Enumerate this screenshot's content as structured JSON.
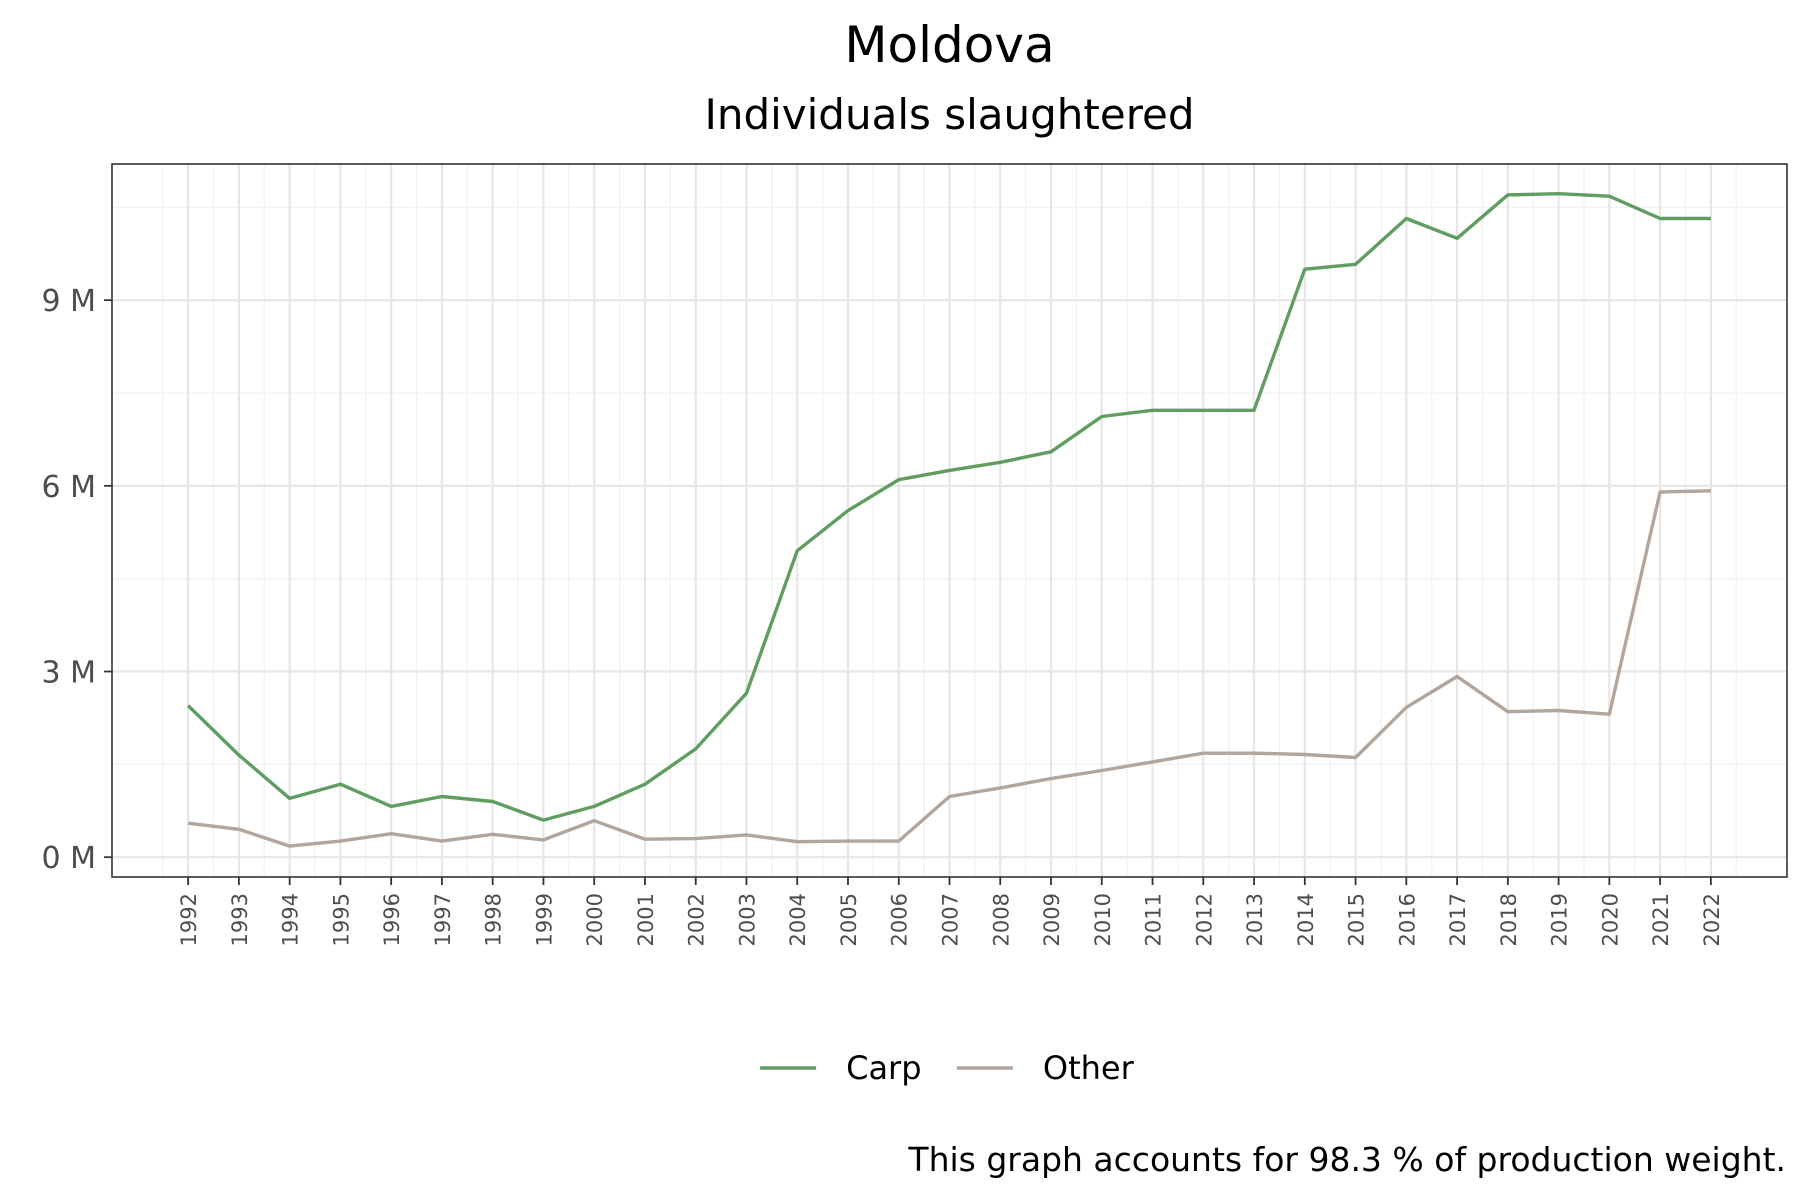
{
  "title": "Moldova",
  "subtitle": "Individuals slaughtered",
  "caption": "This graph accounts for 98.3 % of production weight.",
  "chart_data": {
    "type": "line",
    "x": [
      1992,
      1993,
      1994,
      1995,
      1996,
      1997,
      1998,
      1999,
      2000,
      2001,
      2002,
      2003,
      2004,
      2005,
      2006,
      2007,
      2008,
      2009,
      2010,
      2011,
      2012,
      2013,
      2014,
      2015,
      2016,
      2017,
      2018,
      2019,
      2020,
      2021,
      2022
    ],
    "xlabel": "",
    "ylabel": "",
    "ylim": [
      -0.32,
      11.2
    ],
    "yticks": [
      0,
      3,
      6,
      9
    ],
    "ytick_labels": [
      "0 M",
      "3 M",
      "6 M",
      "9 M"
    ],
    "y_unit": "millions",
    "grid": true,
    "legend": "bottom",
    "series": [
      {
        "name": "Carp",
        "color": "#5f9e60",
        "values": [
          2.45,
          1.65,
          0.95,
          1.18,
          0.82,
          0.98,
          0.9,
          0.6,
          0.82,
          1.18,
          1.75,
          2.65,
          4.95,
          5.6,
          6.1,
          6.25,
          6.38,
          6.55,
          7.12,
          7.22,
          7.22,
          7.22,
          9.5,
          9.58,
          10.32,
          10.0,
          10.7,
          10.72,
          10.68,
          10.32,
          10.32
        ]
      },
      {
        "name": "Other",
        "color": "#b3a49c",
        "values": [
          0.55,
          0.45,
          0.18,
          0.26,
          0.38,
          0.26,
          0.37,
          0.28,
          0.59,
          0.29,
          0.3,
          0.36,
          0.25,
          0.26,
          0.26,
          0.98,
          1.12,
          1.27,
          1.4,
          1.54,
          1.68,
          1.68,
          1.66,
          1.61,
          2.42,
          2.92,
          2.35,
          2.37,
          2.31,
          5.9,
          5.92
        ]
      }
    ]
  }
}
